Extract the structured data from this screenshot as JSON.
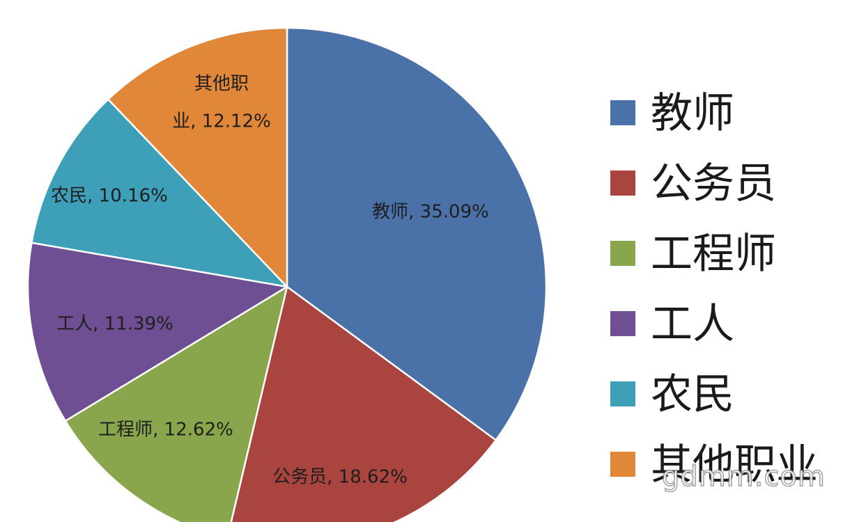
{
  "chart_data": {
    "type": "pie",
    "title": "",
    "slices": [
      {
        "label": "教师",
        "value": 35.09,
        "data_label": "教师, 35.09%",
        "color": "#4a72a8"
      },
      {
        "label": "公务员",
        "value": 18.62,
        "data_label": "公务员, 18.62%",
        "color": "#a9443f"
      },
      {
        "label": "工程师",
        "value": 12.62,
        "data_label": "工程师, 12.62%",
        "color": "#8aa64d"
      },
      {
        "label": "工人",
        "value": 11.39,
        "data_label": "工人, 11.39%",
        "color": "#6f4f93"
      },
      {
        "label": "农民",
        "value": 10.16,
        "data_label": "农民, 10.16%",
        "color": "#3d9fb8"
      },
      {
        "label": "其他职业",
        "value": 12.12,
        "data_label_lines": [
          "其他职",
          "业, 12.12%"
        ],
        "color": "#e0873a"
      }
    ],
    "legend": {
      "placement": "right",
      "entries": [
        "教师",
        "公务员",
        "工程师",
        "工人",
        "农民",
        "其他职业"
      ]
    }
  },
  "watermark": "gdmm.com"
}
